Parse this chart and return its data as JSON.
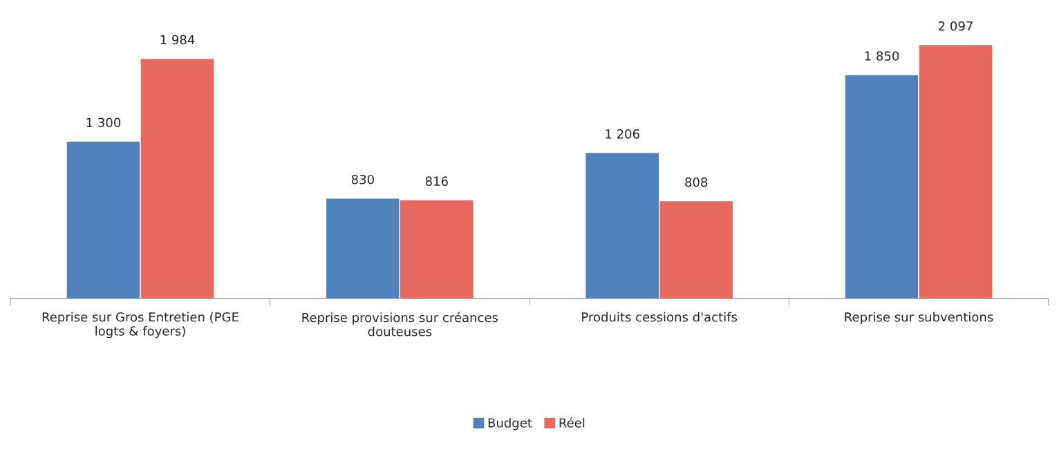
{
  "chart_data": {
    "type": "bar",
    "categories": [
      "Reprise sur Gros Entretien (PGE\nlogts & foyers)",
      "Reprise provisions sur créances\ndouteuses",
      "Produits cessions d'actifs",
      "Reprise sur subventions"
    ],
    "series": [
      {
        "name": "Budget",
        "color": "#4f81bd",
        "values": [
          1300,
          830,
          1206,
          1850
        ],
        "value_labels": [
          "1 300",
          "830",
          "1 206",
          "1 850"
        ]
      },
      {
        "name": "Réel",
        "color": "#e8695e",
        "values": [
          1984,
          816,
          808,
          2097
        ],
        "value_labels": [
          "1 984",
          "816",
          "808",
          "2 097"
        ]
      }
    ],
    "legend": "bottom",
    "grid": false
  }
}
